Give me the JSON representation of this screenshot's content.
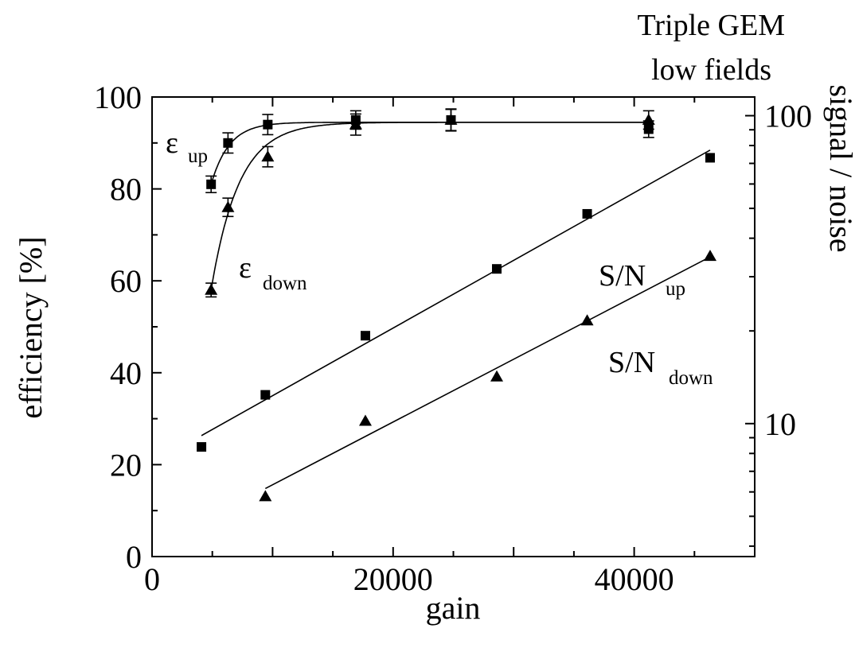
{
  "chart_data": {
    "type": "scatter",
    "title": "",
    "annotation": [
      "Triple GEM",
      "low fields"
    ],
    "xlabel": "gain",
    "ylabel_left": "efficiency [%]",
    "ylabel_right": "signal / noise",
    "xlim": [
      0,
      50000
    ],
    "ylim_left": [
      0,
      100
    ],
    "ylim_right": [
      3.7,
      115
    ],
    "y_right_scale": "log",
    "x_ticks": [
      0,
      20000,
      40000
    ],
    "x_tick_labels": [
      "0",
      "20000",
      "40000"
    ],
    "y_left_ticks": [
      0,
      20,
      40,
      60,
      80,
      100
    ],
    "y_left_tick_labels": [
      "0",
      "20",
      "40",
      "60",
      "80",
      "100"
    ],
    "y_right_ticks": [
      10,
      100
    ],
    "y_right_tick_labels": [
      "10",
      "100"
    ],
    "grid": false,
    "series": [
      {
        "label_main": "ε",
        "label_sub": "up",
        "axis": "left",
        "marker": "square",
        "fit": "saturation",
        "x": [
          4900,
          6300,
          9600,
          16900,
          24800,
          41200
        ],
        "y": [
          81,
          90,
          94,
          95,
          95,
          93
        ],
        "yerr": [
          1.8,
          2.2,
          2.2,
          2.0,
          2.3,
          1.8
        ]
      },
      {
        "label_main": "ε",
        "label_sub": "down",
        "axis": "left",
        "marker": "triangle",
        "fit": "saturation",
        "x": [
          4900,
          6300,
          9600,
          16900,
          24800,
          41200
        ],
        "y": [
          58,
          76,
          87,
          94,
          95,
          95
        ],
        "yerr": [
          1.5,
          2.0,
          2.2,
          2.3,
          2.4,
          2.0
        ]
      },
      {
        "label_main": "S/N",
        "label_sub": "up",
        "axis": "right",
        "marker": "square",
        "fit": "linear",
        "x": [
          4100,
          9400,
          17700,
          28600,
          36100,
          46300
        ],
        "y": [
          8.4,
          12.4,
          19.3,
          31.8,
          48.0,
          73.0
        ]
      },
      {
        "label_main": "S/N",
        "label_sub": "down",
        "axis": "right",
        "marker": "triangle",
        "fit": "linear",
        "x": [
          9400,
          17700,
          28600,
          36100,
          46300
        ],
        "y": [
          5.8,
          10.2,
          14.2,
          21.6,
          35.0
        ]
      }
    ]
  }
}
